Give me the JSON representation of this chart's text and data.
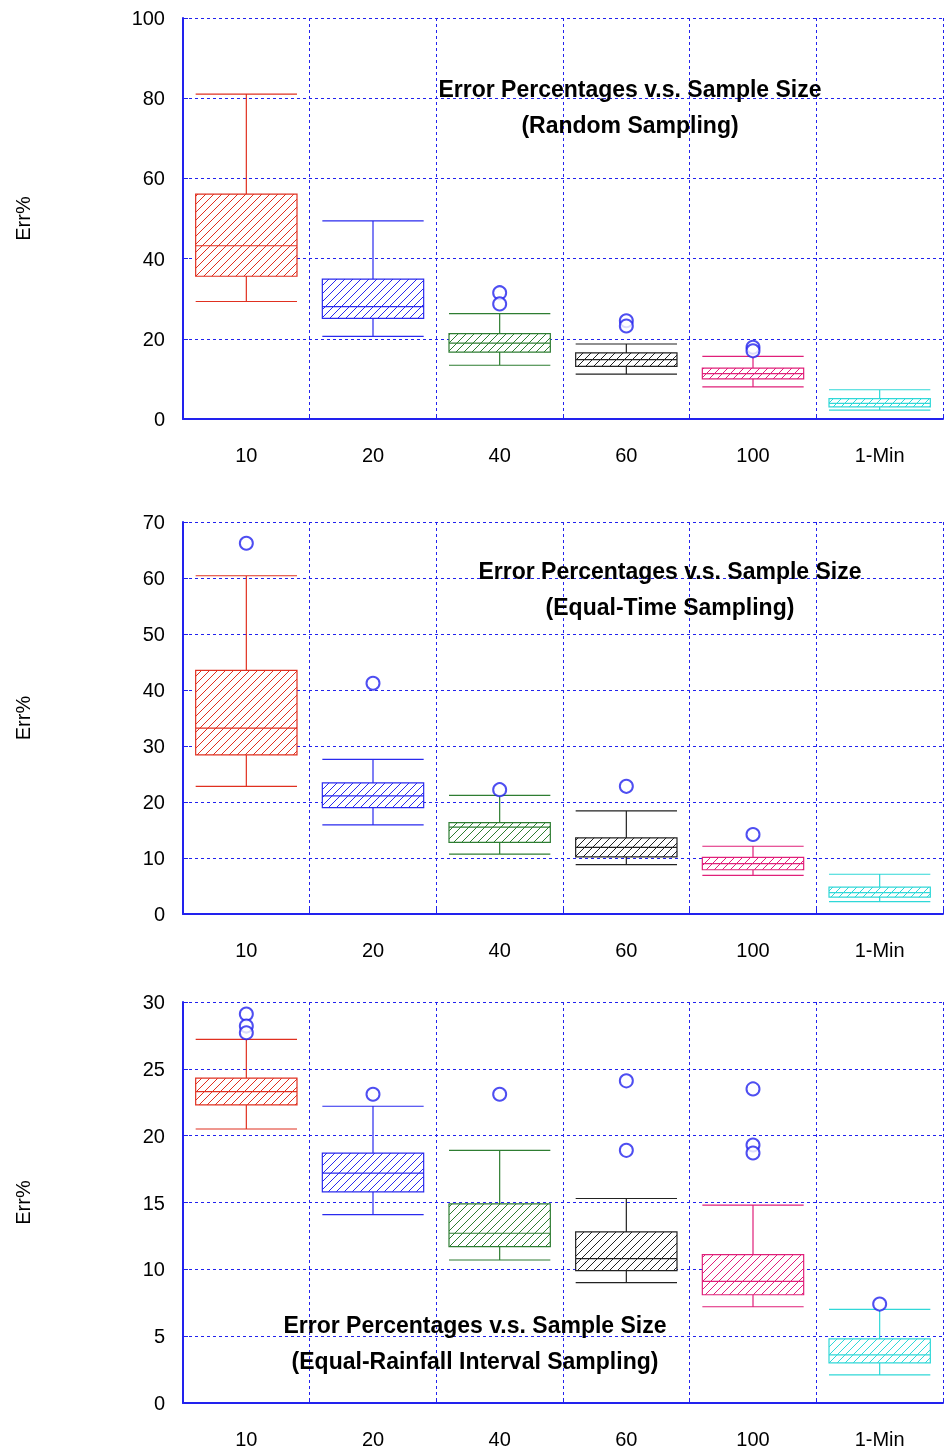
{
  "chart_data": [
    {
      "type": "box",
      "title": "Error Percentages v.s. Sample Size\n(Random Sampling)",
      "ylabel": "Err%",
      "categories": [
        "10",
        "20",
        "40",
        "60",
        "100",
        "1-Min"
      ],
      "colors": [
        "#e03020",
        "#2a2aee",
        "#2e7d32",
        "#222222",
        "#e0207a",
        "#30d8d8"
      ],
      "ylim": [
        0,
        100
      ],
      "yticks": [
        0,
        20,
        40,
        60,
        80,
        100
      ],
      "grid": true,
      "boxes": [
        {
          "low": 29.3,
          "q1": 35.6,
          "median": 43.2,
          "q3": 56.1,
          "high": 81
        },
        {
          "low": 20.6,
          "q1": 25.1,
          "median": 28.0,
          "q3": 34.9,
          "high": 49.4
        },
        {
          "low": 13.4,
          "q1": 16.7,
          "median": 18.9,
          "q3": 21.3,
          "high": 26.3,
          "outliers": [
            31.5,
            28.7
          ]
        },
        {
          "low": 11.2,
          "q1": 13.1,
          "median": 14.8,
          "q3": 16.5,
          "high": 18.7,
          "outliers": [
            24.5,
            23.2
          ]
        },
        {
          "low": 8.0,
          "q1": 10.0,
          "median": 11.3,
          "q3": 12.7,
          "high": 15.6,
          "outliers": [
            17.9,
            17.0
          ]
        },
        {
          "low": 2.2,
          "q1": 3.0,
          "median": 3.9,
          "q3": 5.1,
          "high": 7.3
        }
      ]
    },
    {
      "type": "box",
      "title": "Error Percentages v.s. Sample Size\n(Equal-Time Sampling)",
      "ylabel": "Err%",
      "categories": [
        "10",
        "20",
        "40",
        "60",
        "100",
        "1-Min"
      ],
      "colors": [
        "#e03020",
        "#2a2aee",
        "#2e7d32",
        "#222222",
        "#e0207a",
        "#30d8d8"
      ],
      "ylim": [
        0,
        70
      ],
      "yticks": [
        0,
        10,
        20,
        30,
        40,
        50,
        60,
        70
      ],
      "grid": true,
      "boxes": [
        {
          "low": 22.8,
          "q1": 28.4,
          "median": 33.2,
          "q3": 43.5,
          "high": 60.4,
          "outliers": [
            66.2
          ]
        },
        {
          "low": 15.9,
          "q1": 19.0,
          "median": 21.1,
          "q3": 23.4,
          "high": 27.6,
          "outliers": [
            41.2
          ]
        },
        {
          "low": 10.7,
          "q1": 12.8,
          "median": 15.5,
          "q3": 16.3,
          "high": 21.2,
          "outliers": [
            22.2
          ]
        },
        {
          "low": 8.8,
          "q1": 10.2,
          "median": 11.9,
          "q3": 13.6,
          "high": 18.4,
          "outliers": [
            22.8
          ]
        },
        {
          "low": 6.9,
          "q1": 7.9,
          "median": 9.0,
          "q3": 10.1,
          "high": 12.1,
          "outliers": [
            14.2
          ]
        },
        {
          "low": 2.2,
          "q1": 3.0,
          "median": 3.8,
          "q3": 4.8,
          "high": 7.1
        }
      ]
    },
    {
      "type": "box",
      "title": "Error Percentages v.s. Sample Size\n(Equal-Rainfall Interval Sampling)",
      "ylabel": "Err%",
      "categories": [
        "10",
        "20",
        "40",
        "60",
        "100",
        "1-Min"
      ],
      "colors": [
        "#e03020",
        "#2a2aee",
        "#2e7d32",
        "#222222",
        "#e0207a",
        "#30d8d8"
      ],
      "ylim": [
        0,
        30
      ],
      "yticks": [
        0,
        5,
        10,
        15,
        20,
        25,
        30
      ],
      "grid": true,
      "boxes": [
        {
          "low": 20.5,
          "q1": 22.3,
          "median": 23.3,
          "q3": 24.3,
          "high": 27.2,
          "outliers": [
            29.1,
            28.2,
            27.7
          ]
        },
        {
          "low": 14.1,
          "q1": 15.8,
          "median": 17.2,
          "q3": 18.7,
          "high": 22.2,
          "outliers": [
            23.1
          ]
        },
        {
          "low": 10.7,
          "q1": 11.7,
          "median": 12.7,
          "q3": 14.9,
          "high": 18.9,
          "outliers": [
            23.1
          ]
        },
        {
          "low": 9.0,
          "q1": 9.9,
          "median": 10.8,
          "q3": 12.8,
          "high": 15.3,
          "outliers": [
            24.1,
            18.9
          ]
        },
        {
          "low": 7.2,
          "q1": 8.1,
          "median": 9.1,
          "q3": 11.1,
          "high": 14.8,
          "outliers": [
            23.5,
            19.3,
            18.7
          ]
        },
        {
          "low": 2.1,
          "q1": 3.0,
          "median": 3.6,
          "q3": 4.8,
          "high": 7.0,
          "outliers": [
            7.4
          ]
        }
      ]
    }
  ]
}
